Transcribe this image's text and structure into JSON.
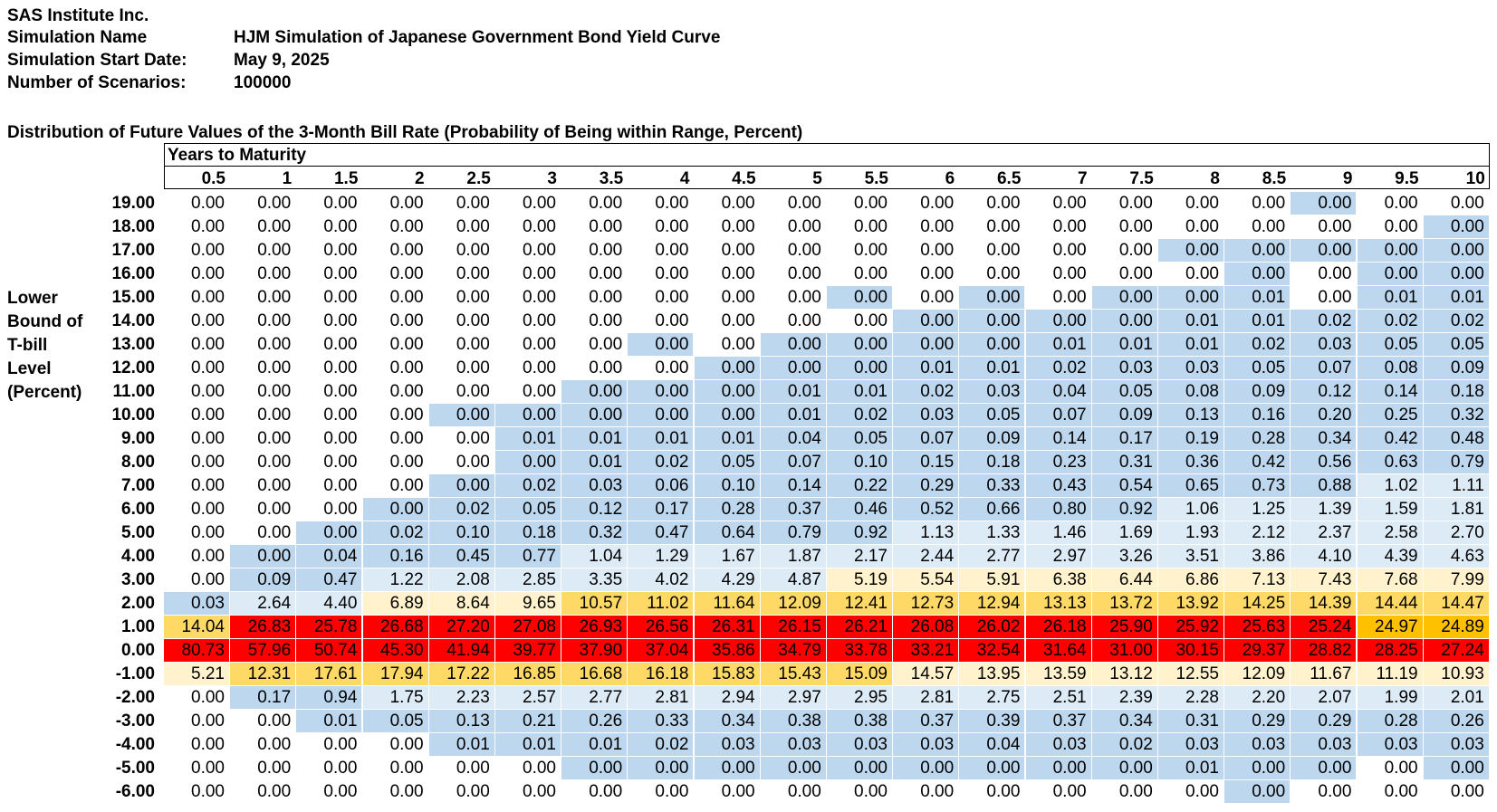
{
  "header": {
    "company": "SAS Institute Inc.",
    "sim_name_label": "Simulation Name",
    "sim_name_value": "HJM Simulation of Japanese Government Bond Yield Curve",
    "start_label": "Simulation Start Date:",
    "start_value": "May 9, 2025",
    "scen_label": "Number of Scenarios:",
    "scen_value": "100000"
  },
  "table_title": "Distribution of Future Values of the 3-Month Bill Rate (Probability of Being within Range, Percent)",
  "years_label": "Years to Maturity",
  "row_axis_label": [
    "Lower",
    "Bound of",
    "T-bill",
    "Level",
    "(Percent)"
  ],
  "colors": {
    "blue": "#BDD7EE",
    "lightblue": "#DDEBF7",
    "cream": "#FFF2CC",
    "yellow": "#FFD966",
    "orange": "#FFC000",
    "red": "#FF0000"
  },
  "columns": [
    "0.5",
    "1",
    "1.5",
    "2",
    "2.5",
    "3",
    "3.5",
    "4",
    "4.5",
    "5",
    "5.5",
    "6",
    "6.5",
    "7",
    "7.5",
    "8",
    "8.5",
    "9",
    "9.5",
    "10"
  ],
  "rows": [
    {
      "label": "19.00",
      "values": [
        "0.00",
        "0.00",
        "0.00",
        "0.00",
        "0.00",
        "0.00",
        "0.00",
        "0.00",
        "0.00",
        "0.00",
        "0.00",
        "0.00",
        "0.00",
        "0.00",
        "0.00",
        "0.00",
        "0.00",
        "0.00",
        "0.00",
        "0.00"
      ],
      "colors": [
        "w",
        "w",
        "w",
        "w",
        "w",
        "w",
        "w",
        "w",
        "w",
        "w",
        "w",
        "w",
        "w",
        "w",
        "w",
        "w",
        "w",
        "b",
        "w",
        "w"
      ]
    },
    {
      "label": "18.00",
      "values": [
        "0.00",
        "0.00",
        "0.00",
        "0.00",
        "0.00",
        "0.00",
        "0.00",
        "0.00",
        "0.00",
        "0.00",
        "0.00",
        "0.00",
        "0.00",
        "0.00",
        "0.00",
        "0.00",
        "0.00",
        "0.00",
        "0.00",
        "0.00"
      ],
      "colors": [
        "w",
        "w",
        "w",
        "w",
        "w",
        "w",
        "w",
        "w",
        "w",
        "w",
        "w",
        "w",
        "w",
        "w",
        "w",
        "w",
        "w",
        "w",
        "w",
        "b"
      ]
    },
    {
      "label": "17.00",
      "values": [
        "0.00",
        "0.00",
        "0.00",
        "0.00",
        "0.00",
        "0.00",
        "0.00",
        "0.00",
        "0.00",
        "0.00",
        "0.00",
        "0.00",
        "0.00",
        "0.00",
        "0.00",
        "0.00",
        "0.00",
        "0.00",
        "0.00",
        "0.00"
      ],
      "colors": [
        "w",
        "w",
        "w",
        "w",
        "w",
        "w",
        "w",
        "w",
        "w",
        "w",
        "w",
        "w",
        "w",
        "w",
        "w",
        "b",
        "b",
        "b",
        "b",
        "b"
      ]
    },
    {
      "label": "16.00",
      "values": [
        "0.00",
        "0.00",
        "0.00",
        "0.00",
        "0.00",
        "0.00",
        "0.00",
        "0.00",
        "0.00",
        "0.00",
        "0.00",
        "0.00",
        "0.00",
        "0.00",
        "0.00",
        "0.00",
        "0.00",
        "0.00",
        "0.00",
        "0.00"
      ],
      "colors": [
        "w",
        "w",
        "w",
        "w",
        "w",
        "w",
        "w",
        "w",
        "w",
        "w",
        "w",
        "w",
        "w",
        "w",
        "w",
        "w",
        "b",
        "w",
        "b",
        "b"
      ]
    },
    {
      "label": "15.00",
      "values": [
        "0.00",
        "0.00",
        "0.00",
        "0.00",
        "0.00",
        "0.00",
        "0.00",
        "0.00",
        "0.00",
        "0.00",
        "0.00",
        "0.00",
        "0.00",
        "0.00",
        "0.00",
        "0.00",
        "0.01",
        "0.00",
        "0.01",
        "0.01"
      ],
      "colors": [
        "w",
        "w",
        "w",
        "w",
        "w",
        "w",
        "w",
        "w",
        "w",
        "w",
        "b",
        "w",
        "b",
        "w",
        "b",
        "b",
        "b",
        "w",
        "b",
        "b"
      ]
    },
    {
      "label": "14.00",
      "values": [
        "0.00",
        "0.00",
        "0.00",
        "0.00",
        "0.00",
        "0.00",
        "0.00",
        "0.00",
        "0.00",
        "0.00",
        "0.00",
        "0.00",
        "0.00",
        "0.00",
        "0.00",
        "0.01",
        "0.01",
        "0.02",
        "0.02",
        "0.02"
      ],
      "colors": [
        "w",
        "w",
        "w",
        "w",
        "w",
        "w",
        "w",
        "w",
        "w",
        "w",
        "w",
        "b",
        "b",
        "b",
        "b",
        "b",
        "b",
        "b",
        "b",
        "b"
      ]
    },
    {
      "label": "13.00",
      "values": [
        "0.00",
        "0.00",
        "0.00",
        "0.00",
        "0.00",
        "0.00",
        "0.00",
        "0.00",
        "0.00",
        "0.00",
        "0.00",
        "0.00",
        "0.00",
        "0.01",
        "0.01",
        "0.01",
        "0.02",
        "0.03",
        "0.05",
        "0.05"
      ],
      "colors": [
        "w",
        "w",
        "w",
        "w",
        "w",
        "w",
        "w",
        "b",
        "w",
        "b",
        "b",
        "b",
        "b",
        "b",
        "b",
        "b",
        "b",
        "b",
        "b",
        "b"
      ]
    },
    {
      "label": "12.00",
      "values": [
        "0.00",
        "0.00",
        "0.00",
        "0.00",
        "0.00",
        "0.00",
        "0.00",
        "0.00",
        "0.00",
        "0.00",
        "0.00",
        "0.01",
        "0.01",
        "0.02",
        "0.03",
        "0.03",
        "0.05",
        "0.07",
        "0.08",
        "0.09"
      ],
      "colors": [
        "w",
        "w",
        "w",
        "w",
        "w",
        "w",
        "w",
        "w",
        "b",
        "b",
        "b",
        "b",
        "b",
        "b",
        "b",
        "b",
        "b",
        "b",
        "b",
        "b"
      ]
    },
    {
      "label": "11.00",
      "values": [
        "0.00",
        "0.00",
        "0.00",
        "0.00",
        "0.00",
        "0.00",
        "0.00",
        "0.00",
        "0.00",
        "0.01",
        "0.01",
        "0.02",
        "0.03",
        "0.04",
        "0.05",
        "0.08",
        "0.09",
        "0.12",
        "0.14",
        "0.18"
      ],
      "colors": [
        "w",
        "w",
        "w",
        "w",
        "w",
        "w",
        "b",
        "b",
        "b",
        "b",
        "b",
        "b",
        "b",
        "b",
        "b",
        "b",
        "b",
        "b",
        "b",
        "b"
      ]
    },
    {
      "label": "10.00",
      "values": [
        "0.00",
        "0.00",
        "0.00",
        "0.00",
        "0.00",
        "0.00",
        "0.00",
        "0.00",
        "0.00",
        "0.01",
        "0.02",
        "0.03",
        "0.05",
        "0.07",
        "0.09",
        "0.13",
        "0.16",
        "0.20",
        "0.25",
        "0.32"
      ],
      "colors": [
        "w",
        "w",
        "w",
        "w",
        "b",
        "b",
        "b",
        "b",
        "b",
        "b",
        "b",
        "b",
        "b",
        "b",
        "b",
        "b",
        "b",
        "b",
        "b",
        "b"
      ]
    },
    {
      "label": "9.00",
      "values": [
        "0.00",
        "0.00",
        "0.00",
        "0.00",
        "0.00",
        "0.01",
        "0.01",
        "0.01",
        "0.01",
        "0.04",
        "0.05",
        "0.07",
        "0.09",
        "0.14",
        "0.17",
        "0.19",
        "0.28",
        "0.34",
        "0.42",
        "0.48"
      ],
      "colors": [
        "w",
        "w",
        "w",
        "w",
        "w",
        "b",
        "b",
        "b",
        "b",
        "b",
        "b",
        "b",
        "b",
        "b",
        "b",
        "b",
        "b",
        "b",
        "b",
        "b"
      ]
    },
    {
      "label": "8.00",
      "values": [
        "0.00",
        "0.00",
        "0.00",
        "0.00",
        "0.00",
        "0.00",
        "0.01",
        "0.02",
        "0.05",
        "0.07",
        "0.10",
        "0.15",
        "0.18",
        "0.23",
        "0.31",
        "0.36",
        "0.42",
        "0.56",
        "0.63",
        "0.79"
      ],
      "colors": [
        "w",
        "w",
        "w",
        "w",
        "w",
        "b",
        "b",
        "b",
        "b",
        "b",
        "b",
        "b",
        "b",
        "b",
        "b",
        "b",
        "b",
        "b",
        "b",
        "b"
      ]
    },
    {
      "label": "7.00",
      "values": [
        "0.00",
        "0.00",
        "0.00",
        "0.00",
        "0.00",
        "0.02",
        "0.03",
        "0.06",
        "0.10",
        "0.14",
        "0.22",
        "0.29",
        "0.33",
        "0.43",
        "0.54",
        "0.65",
        "0.73",
        "0.88",
        "1.02",
        "1.11"
      ],
      "colors": [
        "w",
        "w",
        "w",
        "w",
        "b",
        "b",
        "b",
        "b",
        "b",
        "b",
        "b",
        "b",
        "b",
        "b",
        "b",
        "b",
        "b",
        "b",
        "l",
        "l"
      ]
    },
    {
      "label": "6.00",
      "values": [
        "0.00",
        "0.00",
        "0.00",
        "0.00",
        "0.02",
        "0.05",
        "0.12",
        "0.17",
        "0.28",
        "0.37",
        "0.46",
        "0.52",
        "0.66",
        "0.80",
        "0.92",
        "1.06",
        "1.25",
        "1.39",
        "1.59",
        "1.81"
      ],
      "colors": [
        "w",
        "w",
        "w",
        "b",
        "b",
        "b",
        "b",
        "b",
        "b",
        "b",
        "b",
        "b",
        "b",
        "b",
        "b",
        "l",
        "l",
        "l",
        "l",
        "l"
      ]
    },
    {
      "label": "5.00",
      "values": [
        "0.00",
        "0.00",
        "0.00",
        "0.02",
        "0.10",
        "0.18",
        "0.32",
        "0.47",
        "0.64",
        "0.79",
        "0.92",
        "1.13",
        "1.33",
        "1.46",
        "1.69",
        "1.93",
        "2.12",
        "2.37",
        "2.58",
        "2.70"
      ],
      "colors": [
        "w",
        "w",
        "b",
        "b",
        "b",
        "b",
        "b",
        "b",
        "b",
        "b",
        "b",
        "l",
        "l",
        "l",
        "l",
        "l",
        "l",
        "l",
        "l",
        "l"
      ]
    },
    {
      "label": "4.00",
      "values": [
        "0.00",
        "0.00",
        "0.04",
        "0.16",
        "0.45",
        "0.77",
        "1.04",
        "1.29",
        "1.67",
        "1.87",
        "2.17",
        "2.44",
        "2.77",
        "2.97",
        "3.26",
        "3.51",
        "3.86",
        "4.10",
        "4.39",
        "4.63"
      ],
      "colors": [
        "w",
        "b",
        "b",
        "b",
        "b",
        "b",
        "l",
        "l",
        "l",
        "l",
        "l",
        "l",
        "l",
        "l",
        "l",
        "l",
        "l",
        "l",
        "l",
        "l"
      ]
    },
    {
      "label": "3.00",
      "values": [
        "0.00",
        "0.09",
        "0.47",
        "1.22",
        "2.08",
        "2.85",
        "3.35",
        "4.02",
        "4.29",
        "4.87",
        "5.19",
        "5.54",
        "5.91",
        "6.38",
        "6.44",
        "6.86",
        "7.13",
        "7.43",
        "7.68",
        "7.99"
      ],
      "colors": [
        "w",
        "b",
        "b",
        "l",
        "l",
        "l",
        "l",
        "l",
        "l",
        "l",
        "c",
        "c",
        "c",
        "c",
        "c",
        "c",
        "c",
        "c",
        "c",
        "c"
      ]
    },
    {
      "label": "2.00",
      "values": [
        "0.03",
        "2.64",
        "4.40",
        "6.89",
        "8.64",
        "9.65",
        "10.57",
        "11.02",
        "11.64",
        "12.09",
        "12.41",
        "12.73",
        "12.94",
        "13.13",
        "13.72",
        "13.92",
        "14.25",
        "14.39",
        "14.44",
        "14.47"
      ],
      "colors": [
        "b",
        "l",
        "l",
        "c",
        "c",
        "c",
        "y",
        "y",
        "y",
        "y",
        "y",
        "y",
        "y",
        "y",
        "y",
        "y",
        "y",
        "y",
        "y",
        "y"
      ]
    },
    {
      "label": "1.00",
      "values": [
        "14.04",
        "26.83",
        "25.78",
        "26.68",
        "27.20",
        "27.08",
        "26.93",
        "26.56",
        "26.31",
        "26.15",
        "26.21",
        "26.08",
        "26.02",
        "26.18",
        "25.90",
        "25.92",
        "25.63",
        "25.24",
        "24.97",
        "24.89"
      ],
      "colors": [
        "y",
        "r",
        "r",
        "r",
        "r",
        "r",
        "r",
        "r",
        "r",
        "r",
        "r",
        "r",
        "r",
        "r",
        "r",
        "r",
        "r",
        "r",
        "o",
        "o"
      ]
    },
    {
      "label": "0.00",
      "values": [
        "80.73",
        "57.96",
        "50.74",
        "45.30",
        "41.94",
        "39.77",
        "37.90",
        "37.04",
        "35.86",
        "34.79",
        "33.78",
        "33.21",
        "32.54",
        "31.64",
        "31.00",
        "30.15",
        "29.37",
        "28.82",
        "28.25",
        "27.24"
      ],
      "colors": [
        "r",
        "r",
        "r",
        "r",
        "r",
        "r",
        "r",
        "r",
        "r",
        "r",
        "r",
        "r",
        "r",
        "r",
        "r",
        "r",
        "r",
        "r",
        "r",
        "r"
      ]
    },
    {
      "label": "-1.00",
      "values": [
        "5.21",
        "12.31",
        "17.61",
        "17.94",
        "17.22",
        "16.85",
        "16.68",
        "16.18",
        "15.83",
        "15.43",
        "15.09",
        "14.57",
        "13.95",
        "13.59",
        "13.12",
        "12.55",
        "12.09",
        "11.67",
        "11.19",
        "10.93"
      ],
      "colors": [
        "c",
        "y",
        "y",
        "y",
        "y",
        "y",
        "y",
        "y",
        "y",
        "y",
        "y",
        "c",
        "c",
        "c",
        "c",
        "c",
        "c",
        "c",
        "c",
        "c"
      ]
    },
    {
      "label": "-2.00",
      "values": [
        "0.00",
        "0.17",
        "0.94",
        "1.75",
        "2.23",
        "2.57",
        "2.77",
        "2.81",
        "2.94",
        "2.97",
        "2.95",
        "2.81",
        "2.75",
        "2.51",
        "2.39",
        "2.28",
        "2.20",
        "2.07",
        "1.99",
        "2.01"
      ],
      "colors": [
        "w",
        "b",
        "b",
        "l",
        "l",
        "l",
        "l",
        "l",
        "l",
        "l",
        "l",
        "l",
        "l",
        "l",
        "l",
        "l",
        "l",
        "l",
        "l",
        "l"
      ]
    },
    {
      "label": "-3.00",
      "values": [
        "0.00",
        "0.00",
        "0.01",
        "0.05",
        "0.13",
        "0.21",
        "0.26",
        "0.33",
        "0.34",
        "0.38",
        "0.38",
        "0.37",
        "0.39",
        "0.37",
        "0.34",
        "0.31",
        "0.29",
        "0.29",
        "0.28",
        "0.26"
      ],
      "colors": [
        "w",
        "w",
        "b",
        "b",
        "b",
        "b",
        "b",
        "b",
        "b",
        "b",
        "b",
        "b",
        "b",
        "b",
        "b",
        "b",
        "b",
        "b",
        "b",
        "b"
      ]
    },
    {
      "label": "-4.00",
      "values": [
        "0.00",
        "0.00",
        "0.00",
        "0.00",
        "0.01",
        "0.01",
        "0.01",
        "0.02",
        "0.03",
        "0.03",
        "0.03",
        "0.03",
        "0.04",
        "0.03",
        "0.02",
        "0.03",
        "0.03",
        "0.03",
        "0.03",
        "0.03"
      ],
      "colors": [
        "w",
        "w",
        "w",
        "w",
        "b",
        "b",
        "b",
        "b",
        "b",
        "b",
        "b",
        "b",
        "b",
        "b",
        "b",
        "b",
        "b",
        "b",
        "b",
        "b"
      ]
    },
    {
      "label": "-5.00",
      "values": [
        "0.00",
        "0.00",
        "0.00",
        "0.00",
        "0.00",
        "0.00",
        "0.00",
        "0.00",
        "0.00",
        "0.00",
        "0.00",
        "0.00",
        "0.00",
        "0.00",
        "0.00",
        "0.01",
        "0.00",
        "0.00",
        "0.00",
        "0.00"
      ],
      "colors": [
        "w",
        "w",
        "w",
        "w",
        "w",
        "w",
        "b",
        "b",
        "b",
        "b",
        "b",
        "b",
        "b",
        "b",
        "b",
        "b",
        "b",
        "b",
        "w",
        "b"
      ]
    },
    {
      "label": "-6.00",
      "values": [
        "0.00",
        "0.00",
        "0.00",
        "0.00",
        "0.00",
        "0.00",
        "0.00",
        "0.00",
        "0.00",
        "0.00",
        "0.00",
        "0.00",
        "0.00",
        "0.00",
        "0.00",
        "0.00",
        "0.00",
        "0.00",
        "0.00",
        "0.00"
      ],
      "colors": [
        "w",
        "w",
        "w",
        "w",
        "w",
        "w",
        "w",
        "w",
        "w",
        "w",
        "w",
        "w",
        "w",
        "w",
        "w",
        "w",
        "b",
        "w",
        "w",
        "w"
      ]
    }
  ]
}
